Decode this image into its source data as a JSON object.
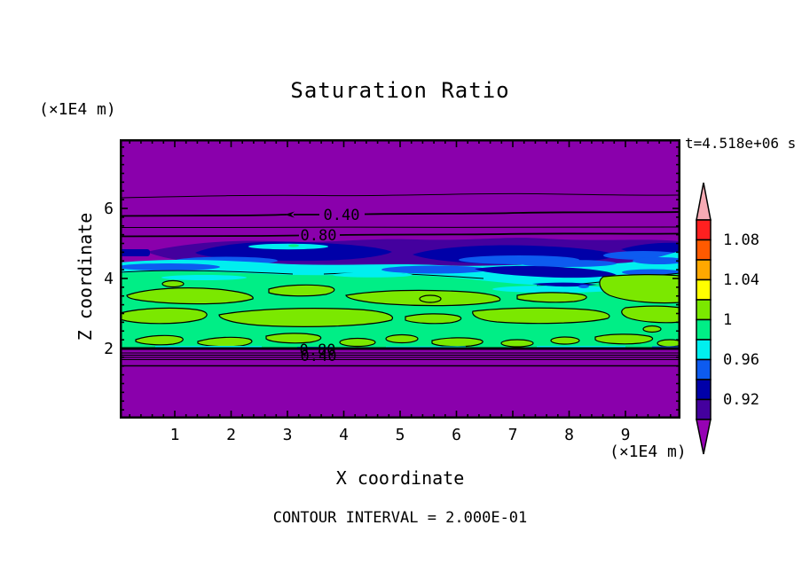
{
  "header": {
    "plot_title": "Saturation Ratio",
    "timestamp": "t=4.518e+06 s"
  },
  "axes": {
    "x": {
      "label": "X coordinate",
      "units": "(×1E4 m)",
      "ticks": [
        1,
        2,
        3,
        4,
        5,
        6,
        7,
        8,
        9
      ]
    },
    "z": {
      "label": "Z coordinate",
      "units": "(×1E4 m)",
      "ticks": [
        2,
        4,
        6
      ]
    }
  },
  "footer": {
    "contour_interval_text": "CONTOUR INTERVAL = 2.000E-01"
  },
  "colorbar": {
    "labels": [
      "1.08",
      "1.04",
      "1",
      "0.96",
      "0.92"
    ],
    "segment_colors": [
      "#FF2020",
      "#FF5A00",
      "#FFA800",
      "#FFFF00",
      "#7BE800",
      "#00EE86",
      "#00EFEF",
      "#0D5BF0",
      "#0000A8",
      "#44009E"
    ],
    "over_color": "#F7AAB4",
    "under_color": "#9602B4"
  },
  "contour_labels": {
    "upper_040": "0.40",
    "upper_080": "0.80",
    "lower_080": "0.80",
    "lower_040": "0.40"
  },
  "chart_data": {
    "type": "heatmap",
    "subtype": "filled-contour-plot",
    "title": "Saturation Ratio",
    "xlabel": "X coordinate",
    "ylabel": "Z coordinate",
    "axis_units": "(×1E4 m)",
    "xlim": [
      0,
      10
    ],
    "ylim": [
      0,
      8
    ],
    "x_ticks": [
      1,
      2,
      3,
      4,
      5,
      6,
      7,
      8,
      9
    ],
    "z_ticks": [
      2,
      4,
      6
    ],
    "time_annotation": "t=4.518e+06 s",
    "contour_interval": 0.2,
    "contour_interval_label": "CONTOUR INTERVAL = 2.000E-01",
    "colorbar_levels": [
      0.9,
      0.92,
      0.94,
      0.96,
      0.98,
      1.0,
      1.02,
      1.04,
      1.06,
      1.08,
      1.1
    ],
    "colorbar_labeled_levels": [
      "1.08",
      "1.04",
      "1",
      "0.96",
      "0.92"
    ],
    "colorbar_colors_top_to_bottom": [
      "#FF2020",
      "#FF5A00",
      "#FFA800",
      "#FFFF00",
      "#7BE800",
      "#00EE86",
      "#00EFEF",
      "#0D5BF0",
      "#0000A8",
      "#44009E"
    ],
    "background_color": "#8A00AC",
    "line_contour_labels": [
      {
        "value": 0.4,
        "x": 4.0,
        "z": 5.95
      },
      {
        "value": 0.8,
        "x": 3.6,
        "z": 5.2
      },
      {
        "value": 0.8,
        "x": 3.6,
        "z": 1.95
      },
      {
        "value": 0.4,
        "x": 3.65,
        "z": 1.75
      }
    ],
    "layers_top_to_bottom": [
      {
        "z_range": [
          4.9,
          8.0
        ],
        "saturation": "< 0.90 (purple background with 0.2–0.8 line contours)"
      },
      {
        "z_range": [
          4.4,
          4.9
        ],
        "saturation": "0.90–0.96 (indigo / navy / blue streaky patches)"
      },
      {
        "z_range": [
          4.0,
          4.6
        ],
        "saturation": "0.96–0.98 (cyan band with blue 0.94–0.96 streaks)"
      },
      {
        "z_range": [
          2.0,
          4.2
        ],
        "saturation": "0.98–1.00 (spring green) with 1.00–1.02 green-yellow blobs"
      },
      {
        "z_range": [
          0.0,
          2.0
        ],
        "saturation": "< 0.90 (purple; tightly stacked 0.2–0.8 contours just below z=2)"
      }
    ]
  }
}
